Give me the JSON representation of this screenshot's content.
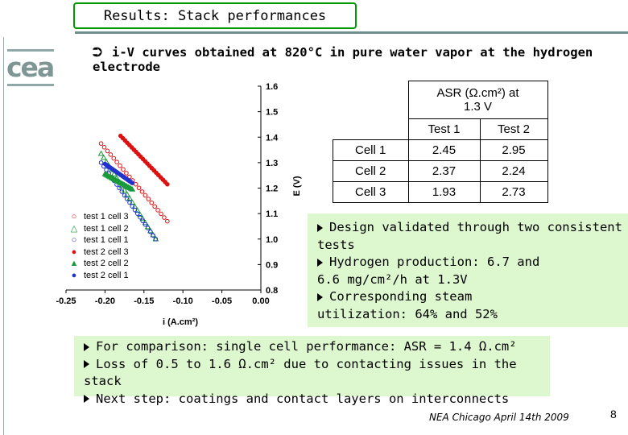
{
  "slide": {
    "title": "Results: Stack performances",
    "logo": "cea",
    "heading_symbol": "⮊",
    "heading": "i-V curves obtained at 820°C in pure water vapor at the hydrogen electrode",
    "footer": "NEA Chicago April 14th 2009",
    "page_number": "8"
  },
  "asr_table": {
    "header": "ASR (Ω.cm²) at 1.3 V",
    "columns": [
      "Test 1",
      "Test 2"
    ],
    "rows": [
      {
        "label": "Cell 1",
        "values": [
          "2.45",
          "2.95"
        ]
      },
      {
        "label": "Cell 2",
        "values": [
          "2.37",
          "2.24"
        ]
      },
      {
        "label": "Cell 3",
        "values": [
          "1.93",
          "2.73"
        ]
      }
    ]
  },
  "results_box": {
    "items": [
      "Design validated through two consistent tests",
      "Hydrogen production: 6.7 and 6.6 mg/cm²/h at 1.3V",
      "Corresponding steam utilization: 64% and 52%"
    ]
  },
  "notes_box": {
    "items": [
      "For comparison: single cell performance: ASR = 1.4 Ω.cm²",
      "Loss of 0.5 to 1.6 Ω.cm² due to contacting issues in the stack",
      "Next step: coatings and contact layers on interconnects"
    ]
  },
  "chart_data": {
    "type": "scatter",
    "xlabel": "i (A.cm²)",
    "ylabel": "E (V)",
    "xlim": [
      -0.25,
      0.0
    ],
    "ylim": [
      0.8,
      1.6
    ],
    "xticks": [
      "-0.25",
      "-0.20",
      "-0.15",
      "-0.10",
      "-0.05",
      "0.00"
    ],
    "yticks": [
      "0.8",
      "0.9",
      "1.0",
      "1.1",
      "1.2",
      "1.3",
      "1.4",
      "1.5",
      "1.6"
    ],
    "legend_placement": "left",
    "series": [
      {
        "name": "test 1 cell 3",
        "marker": "circle-open",
        "color": "#d11",
        "x0": -0.205,
        "y0": 1.375,
        "x1": -0.12,
        "y1": 1.07
      },
      {
        "name": "test 1 cell 2",
        "marker": "triangle-open",
        "color": "#1a9a3a",
        "x0": -0.205,
        "y0": 1.335,
        "x1": -0.135,
        "y1": 1.0
      },
      {
        "name": "test 1 cell 1",
        "marker": "circle-open",
        "color": "#2233cc",
        "x0": -0.205,
        "y0": 1.3,
        "x1": -0.135,
        "y1": 1.0
      },
      {
        "name": "test 2 cell 3",
        "marker": "circle-filled",
        "color": "#d11",
        "x0": -0.18,
        "y0": 1.405,
        "x1": -0.12,
        "y1": 1.215
      },
      {
        "name": "test 2 cell 2",
        "marker": "triangle-filled",
        "color": "#1a9a3a",
        "x0": -0.2,
        "y0": 1.255,
        "x1": -0.165,
        "y1": 1.195
      },
      {
        "name": "test 2 cell 1",
        "marker": "circle-filled",
        "color": "#2233cc",
        "x0": -0.2,
        "y0": 1.295,
        "x1": -0.165,
        "y1": 1.22
      }
    ]
  },
  "colors": {
    "title_border": "#009900",
    "box_fill": "#ddf7cf"
  }
}
